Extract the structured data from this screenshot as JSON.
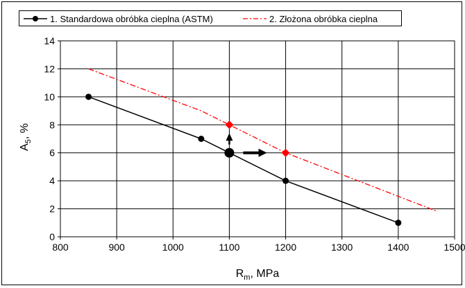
{
  "chart_data": {
    "type": "line",
    "title": "",
    "xlabel": "Rm, MPa",
    "xlabel_main": "R",
    "xlabel_sub": "m",
    "xlabel_rest": ", MPa",
    "ylabel": "A5, %",
    "ylabel_main": "A",
    "ylabel_sub": "5",
    "ylabel_rest": ", %",
    "xlim": [
      800,
      1500
    ],
    "ylim": [
      0,
      14
    ],
    "xticks": [
      "800",
      "900",
      "1000",
      "1100",
      "1200",
      "1300",
      "1400",
      "1500"
    ],
    "yticks": [
      "0",
      "2",
      "4",
      "6",
      "8",
      "10",
      "12",
      "14"
    ],
    "grid": true,
    "legend_position": "top",
    "series": [
      {
        "name": "1. Standardowa obróbka cieplna (ASTM)",
        "color": "#000000",
        "style": "solid-with-circle-markers",
        "x": [
          850,
          1050,
          1100,
          1200,
          1400
        ],
        "y": [
          10,
          7,
          6,
          4,
          1
        ]
      },
      {
        "name": "2. Złożona obróbka cieplna",
        "color": "#ff0000",
        "style": "dash-dot",
        "x": [
          850,
          1050,
          1100,
          1200,
          1470
        ],
        "y": [
          12,
          9,
          8,
          6,
          1.8
        ]
      }
    ],
    "highlighted_points": [
      {
        "x": 1100,
        "y": 6,
        "marker": "large-circle",
        "color": "#000000"
      },
      {
        "x": 1100,
        "y": 8,
        "marker": "diamond",
        "color": "#ff0000"
      },
      {
        "x": 1200,
        "y": 6,
        "marker": "diamond",
        "color": "#ff0000"
      }
    ],
    "arrows": [
      {
        "from": [
          1100,
          6
        ],
        "to": [
          1100,
          8
        ],
        "direction": "up"
      },
      {
        "from": [
          1100,
          6
        ],
        "to": [
          1200,
          6
        ],
        "direction": "right"
      }
    ]
  }
}
